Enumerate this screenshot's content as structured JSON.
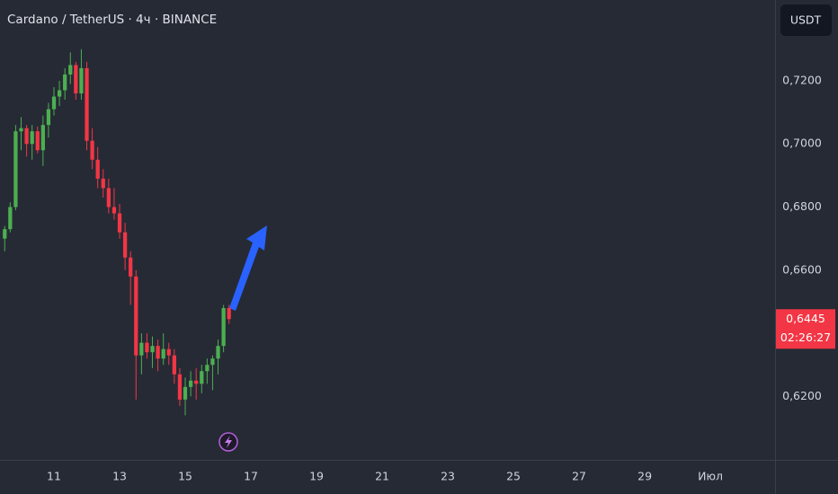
{
  "chart_data": {
    "type": "candlestick",
    "title": "Cardano / TetherUS · 4ч · BINANCE",
    "currency": "USDT",
    "up_color": "#4caf50",
    "down_color": "#f23645",
    "x": [
      9.5,
      9.6667,
      9.8333,
      10,
      10.1667,
      10.3333,
      10.5,
      10.6667,
      10.8333,
      11,
      11.1667,
      11.3333,
      11.5,
      11.6667,
      11.8333,
      12,
      12.1667,
      12.3333,
      12.5,
      12.6667,
      12.8333,
      13,
      13.1667,
      13.3333,
      13.5,
      13.6667,
      13.8333,
      14,
      14.1667,
      14.3333,
      14.5,
      14.6667,
      14.8333,
      15,
      15.1667,
      15.3333,
      15.5,
      15.6667,
      15.8333,
      16,
      16.1667,
      16.3333
    ],
    "open": [
      0.67,
      0.673,
      0.68,
      0.704,
      0.705,
      0.7,
      0.704,
      0.698,
      0.706,
      0.711,
      0.715,
      0.717,
      0.722,
      0.725,
      0.716,
      0.724,
      0.701,
      0.695,
      0.689,
      0.686,
      0.68,
      0.678,
      0.672,
      0.664,
      0.658,
      0.633,
      0.637,
      0.634,
      0.636,
      0.632,
      0.635,
      0.633,
      0.627,
      0.619,
      0.623,
      0.625,
      0.624,
      0.628,
      0.63,
      0.632,
      0.636,
      0.648
    ],
    "high": [
      0.674,
      0.6815,
      0.706,
      0.7085,
      0.706,
      0.706,
      0.7055,
      0.709,
      0.713,
      0.718,
      0.72,
      0.724,
      0.729,
      0.726,
      0.73,
      0.726,
      0.705,
      0.699,
      0.692,
      0.689,
      0.686,
      0.681,
      0.675,
      0.666,
      0.66,
      0.64,
      0.64,
      0.639,
      0.638,
      0.64,
      0.637,
      0.635,
      0.629,
      0.626,
      0.628,
      0.629,
      0.63,
      0.632,
      0.633,
      0.638,
      0.649,
      0.649
    ],
    "low": [
      0.666,
      0.672,
      0.679,
      0.698,
      0.696,
      0.695,
      0.697,
      0.693,
      0.702,
      0.709,
      0.712,
      0.714,
      0.719,
      0.714,
      0.714,
      0.698,
      0.692,
      0.686,
      0.683,
      0.678,
      0.676,
      0.67,
      0.66,
      0.649,
      0.619,
      0.627,
      0.632,
      0.629,
      0.628,
      0.63,
      0.63,
      0.624,
      0.617,
      0.614,
      0.62,
      0.619,
      0.621,
      0.624,
      0.622,
      0.627,
      0.634,
      0.643
    ],
    "close": [
      0.673,
      0.68,
      0.704,
      0.705,
      0.7,
      0.704,
      0.698,
      0.706,
      0.711,
      0.715,
      0.717,
      0.722,
      0.725,
      0.716,
      0.724,
      0.701,
      0.695,
      0.689,
      0.686,
      0.68,
      0.678,
      0.672,
      0.664,
      0.658,
      0.633,
      0.637,
      0.634,
      0.636,
      0.632,
      0.635,
      0.633,
      0.627,
      0.619,
      0.623,
      0.625,
      0.624,
      0.628,
      0.63,
      0.632,
      0.636,
      0.648,
      0.6445
    ],
    "xlim": [
      9.356,
      32.97
    ],
    "ylim": [
      0.5999,
      0.7456
    ],
    "xticks": [
      11,
      13,
      15,
      17,
      19,
      21,
      23,
      25,
      27,
      29,
      {
        "value": 31,
        "label": "Июл"
      }
    ],
    "yticks": [
      {
        "value": 0.72,
        "label": "0,7200"
      },
      {
        "value": 0.7,
        "label": "0,7000"
      },
      {
        "value": 0.68,
        "label": "0,6800"
      },
      {
        "value": 0.66,
        "label": "0,6600"
      },
      {
        "value": 0.62,
        "label": "0,6200"
      }
    ],
    "last_price": {
      "value": 0.6445,
      "label": "0,6445"
    },
    "countdown": "02:26:27"
  }
}
